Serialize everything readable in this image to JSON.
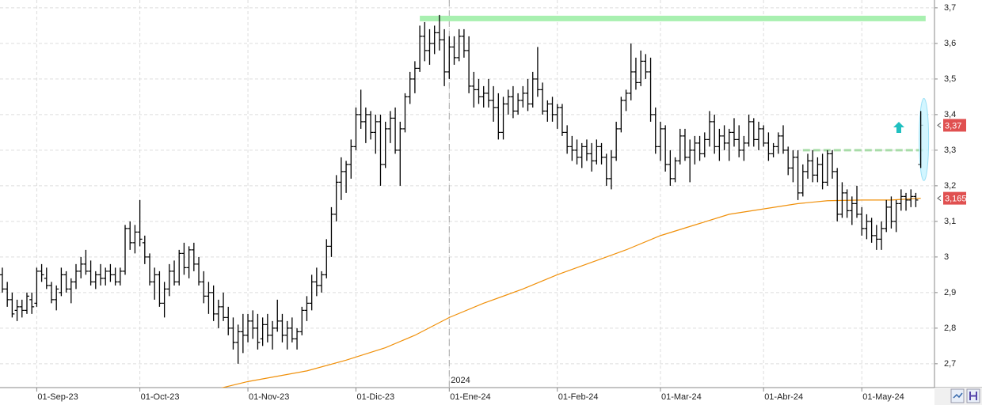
{
  "chart_data": {
    "type": "ohlc",
    "ohlc_order": [
      "open",
      "high",
      "low",
      "close"
    ],
    "color": "#000000",
    "ohlc": [
      [
        2.95,
        2.97,
        2.9,
        2.91
      ],
      [
        2.91,
        2.93,
        2.86,
        2.88
      ],
      [
        2.88,
        2.9,
        2.83,
        2.84
      ],
      [
        2.85,
        2.88,
        2.82,
        2.86
      ],
      [
        2.86,
        2.88,
        2.83,
        2.85
      ],
      [
        2.85,
        2.9,
        2.84,
        2.89
      ],
      [
        2.88,
        2.9,
        2.84,
        2.86
      ],
      [
        2.87,
        2.97,
        2.86,
        2.96
      ],
      [
        2.96,
        2.98,
        2.93,
        2.95
      ],
      [
        2.94,
        2.97,
        2.91,
        2.92
      ],
      [
        2.92,
        2.93,
        2.87,
        2.88
      ],
      [
        2.88,
        2.92,
        2.85,
        2.91
      ],
      [
        2.9,
        2.97,
        2.89,
        2.95
      ],
      [
        2.95,
        2.96,
        2.9,
        2.91
      ],
      [
        2.91,
        2.94,
        2.87,
        2.93
      ],
      [
        2.93,
        2.98,
        2.91,
        2.96
      ],
      [
        2.96,
        3.0,
        2.94,
        2.98
      ],
      [
        2.98,
        3.02,
        2.95,
        2.96
      ],
      [
        2.96,
        2.99,
        2.92,
        2.93
      ],
      [
        2.93,
        2.96,
        2.91,
        2.95
      ],
      [
        2.95,
        2.98,
        2.92,
        2.94
      ],
      [
        2.94,
        2.97,
        2.92,
        2.96
      ],
      [
        2.96,
        2.98,
        2.93,
        2.95
      ],
      [
        2.95,
        2.97,
        2.92,
        2.93
      ],
      [
        2.93,
        2.97,
        2.92,
        2.96
      ],
      [
        2.96,
        3.09,
        2.95,
        3.08
      ],
      [
        3.08,
        3.1,
        3.02,
        3.04
      ],
      [
        3.04,
        3.09,
        3.01,
        3.07
      ],
      [
        3.07,
        3.16,
        3.03,
        3.05
      ],
      [
        3.04,
        3.06,
        2.98,
        3.0
      ],
      [
        3.0,
        3.01,
        2.92,
        2.93
      ],
      [
        2.93,
        2.97,
        2.88,
        2.95
      ],
      [
        2.95,
        2.96,
        2.86,
        2.87
      ],
      [
        2.87,
        2.93,
        2.83,
        2.91
      ],
      [
        2.91,
        2.98,
        2.89,
        2.96
      ],
      [
        2.96,
        2.99,
        2.92,
        2.93
      ],
      [
        2.93,
        3.02,
        2.92,
        3.01
      ],
      [
        3.01,
        3.04,
        2.95,
        2.97
      ],
      [
        2.97,
        3.03,
        2.94,
        3.02
      ],
      [
        3.02,
        3.04,
        2.96,
        2.98
      ],
      [
        2.98,
        3.0,
        2.92,
        2.93
      ],
      [
        2.93,
        2.96,
        2.87,
        2.89
      ],
      [
        2.89,
        2.93,
        2.84,
        2.9
      ],
      [
        2.9,
        2.92,
        2.82,
        2.84
      ],
      [
        2.84,
        2.88,
        2.8,
        2.86
      ],
      [
        2.86,
        2.9,
        2.82,
        2.83
      ],
      [
        2.83,
        2.86,
        2.78,
        2.8
      ],
      [
        2.8,
        2.83,
        2.74,
        2.76
      ],
      [
        2.76,
        2.81,
        2.7,
        2.79
      ],
      [
        2.79,
        2.84,
        2.73,
        2.78
      ],
      [
        2.78,
        2.84,
        2.76,
        2.82
      ],
      [
        2.82,
        2.85,
        2.77,
        2.8
      ],
      [
        2.8,
        2.84,
        2.74,
        2.76
      ],
      [
        2.77,
        2.83,
        2.75,
        2.81
      ],
      [
        2.81,
        2.84,
        2.76,
        2.78
      ],
      [
        2.78,
        2.82,
        2.74,
        2.8
      ],
      [
        2.8,
        2.88,
        2.79,
        2.82
      ],
      [
        2.82,
        2.84,
        2.76,
        2.78
      ],
      [
        2.78,
        2.82,
        2.74,
        2.8
      ],
      [
        2.8,
        2.83,
        2.76,
        2.77
      ],
      [
        2.77,
        2.8,
        2.74,
        2.79
      ],
      [
        2.79,
        2.86,
        2.78,
        2.85
      ],
      [
        2.85,
        2.89,
        2.82,
        2.87
      ],
      [
        2.87,
        2.95,
        2.85,
        2.93
      ],
      [
        2.93,
        2.97,
        2.89,
        2.92
      ],
      [
        2.92,
        2.96,
        2.9,
        2.95
      ],
      [
        2.95,
        3.05,
        2.94,
        3.03
      ],
      [
        3.03,
        3.14,
        3.0,
        3.12
      ],
      [
        3.12,
        3.23,
        3.1,
        3.21
      ],
      [
        3.21,
        3.28,
        3.16,
        3.24
      ],
      [
        3.24,
        3.27,
        3.18,
        3.26
      ],
      [
        3.26,
        3.33,
        3.22,
        3.31
      ],
      [
        3.31,
        3.42,
        3.3,
        3.4
      ],
      [
        3.4,
        3.47,
        3.36,
        3.38
      ],
      [
        3.38,
        3.42,
        3.32,
        3.4
      ],
      [
        3.4,
        3.41,
        3.33,
        3.35
      ],
      [
        3.35,
        3.4,
        3.29,
        3.38
      ],
      [
        3.38,
        3.4,
        3.2,
        3.26
      ],
      [
        3.26,
        3.38,
        3.25,
        3.36
      ],
      [
        3.36,
        3.41,
        3.32,
        3.39
      ],
      [
        3.39,
        3.42,
        3.29,
        3.3
      ],
      [
        3.3,
        3.38,
        3.2,
        3.36
      ],
      [
        3.36,
        3.46,
        3.35,
        3.45
      ],
      [
        3.45,
        3.52,
        3.43,
        3.5
      ],
      [
        3.5,
        3.55,
        3.46,
        3.53
      ],
      [
        3.53,
        3.65,
        3.52,
        3.62
      ],
      [
        3.62,
        3.66,
        3.55,
        3.58
      ],
      [
        3.58,
        3.64,
        3.54,
        3.6
      ],
      [
        3.6,
        3.65,
        3.57,
        3.63
      ],
      [
        3.63,
        3.68,
        3.58,
        3.61
      ],
      [
        3.61,
        3.64,
        3.48,
        3.52
      ],
      [
        3.52,
        3.62,
        3.5,
        3.59
      ],
      [
        3.59,
        3.62,
        3.54,
        3.56
      ],
      [
        3.56,
        3.64,
        3.55,
        3.62
      ],
      [
        3.62,
        3.64,
        3.56,
        3.58
      ],
      [
        3.58,
        3.62,
        3.46,
        3.48
      ],
      [
        3.48,
        3.52,
        3.42,
        3.47
      ],
      [
        3.47,
        3.5,
        3.43,
        3.45
      ],
      [
        3.45,
        3.48,
        3.42,
        3.46
      ],
      [
        3.46,
        3.5,
        3.42,
        3.44
      ],
      [
        3.44,
        3.48,
        3.38,
        3.42
      ],
      [
        3.42,
        3.46,
        3.33,
        3.35
      ],
      [
        3.35,
        3.45,
        3.33,
        3.43
      ],
      [
        3.43,
        3.47,
        3.4,
        3.45
      ],
      [
        3.45,
        3.48,
        3.39,
        3.41
      ],
      [
        3.41,
        3.46,
        3.4,
        3.44
      ],
      [
        3.44,
        3.48,
        3.42,
        3.46
      ],
      [
        3.46,
        3.5,
        3.41,
        3.43
      ],
      [
        3.43,
        3.52,
        3.42,
        3.5
      ],
      [
        3.5,
        3.59,
        3.45,
        3.47
      ],
      [
        3.47,
        3.49,
        3.4,
        3.41
      ],
      [
        3.41,
        3.44,
        3.38,
        3.43
      ],
      [
        3.43,
        3.45,
        3.38,
        3.4
      ],
      [
        3.4,
        3.43,
        3.36,
        3.42
      ],
      [
        3.42,
        3.43,
        3.34,
        3.35
      ],
      [
        3.35,
        3.37,
        3.29,
        3.31
      ],
      [
        3.31,
        3.34,
        3.27,
        3.3
      ],
      [
        3.3,
        3.33,
        3.26,
        3.28
      ],
      [
        3.28,
        3.32,
        3.25,
        3.31
      ],
      [
        3.31,
        3.33,
        3.27,
        3.29
      ],
      [
        3.29,
        3.32,
        3.24,
        3.27
      ],
      [
        3.27,
        3.33,
        3.26,
        3.31
      ],
      [
        3.31,
        3.32,
        3.26,
        3.28
      ],
      [
        3.28,
        3.29,
        3.2,
        3.22
      ],
      [
        3.22,
        3.3,
        3.19,
        3.28
      ],
      [
        3.28,
        3.38,
        3.27,
        3.36
      ],
      [
        3.36,
        3.45,
        3.35,
        3.44
      ],
      [
        3.44,
        3.47,
        3.41,
        3.46
      ],
      [
        3.46,
        3.6,
        3.44,
        3.52
      ],
      [
        3.52,
        3.56,
        3.47,
        3.49
      ],
      [
        3.49,
        3.58,
        3.48,
        3.55
      ],
      [
        3.55,
        3.57,
        3.5,
        3.52
      ],
      [
        3.52,
        3.56,
        3.38,
        3.4
      ],
      [
        3.4,
        3.42,
        3.29,
        3.31
      ],
      [
        3.31,
        3.38,
        3.27,
        3.36
      ],
      [
        3.36,
        3.37,
        3.24,
        3.26
      ],
      [
        3.26,
        3.3,
        3.2,
        3.22
      ],
      [
        3.22,
        3.28,
        3.21,
        3.27
      ],
      [
        3.27,
        3.36,
        3.26,
        3.34
      ],
      [
        3.34,
        3.36,
        3.27,
        3.28
      ],
      [
        3.28,
        3.33,
        3.21,
        3.3
      ],
      [
        3.3,
        3.34,
        3.26,
        3.32
      ],
      [
        3.32,
        3.34,
        3.27,
        3.29
      ],
      [
        3.29,
        3.35,
        3.28,
        3.33
      ],
      [
        3.33,
        3.41,
        3.31,
        3.38
      ],
      [
        3.38,
        3.4,
        3.29,
        3.31
      ],
      [
        3.31,
        3.36,
        3.27,
        3.34
      ],
      [
        3.34,
        3.37,
        3.3,
        3.32
      ],
      [
        3.32,
        3.36,
        3.27,
        3.35
      ],
      [
        3.35,
        3.39,
        3.31,
        3.33
      ],
      [
        3.33,
        3.37,
        3.28,
        3.3
      ],
      [
        3.3,
        3.34,
        3.27,
        3.32
      ],
      [
        3.32,
        3.4,
        3.31,
        3.38
      ],
      [
        3.38,
        3.39,
        3.31,
        3.33
      ],
      [
        3.33,
        3.38,
        3.3,
        3.36
      ],
      [
        3.36,
        3.37,
        3.31,
        3.32
      ],
      [
        3.32,
        3.35,
        3.27,
        3.29
      ],
      [
        3.29,
        3.32,
        3.28,
        3.31
      ],
      [
        3.31,
        3.35,
        3.29,
        3.34
      ],
      [
        3.34,
        3.37,
        3.29,
        3.3
      ],
      [
        3.3,
        3.31,
        3.23,
        3.25
      ],
      [
        3.25,
        3.3,
        3.21,
        3.28
      ],
      [
        3.28,
        3.3,
        3.16,
        3.18
      ],
      [
        3.18,
        3.26,
        3.17,
        3.24
      ],
      [
        3.24,
        3.29,
        3.22,
        3.27
      ],
      [
        3.27,
        3.3,
        3.21,
        3.23
      ],
      [
        3.23,
        3.28,
        3.21,
        3.26
      ],
      [
        3.26,
        3.29,
        3.19,
        3.21
      ],
      [
        3.21,
        3.3,
        3.2,
        3.29
      ],
      [
        3.29,
        3.3,
        3.22,
        3.24
      ],
      [
        3.24,
        3.25,
        3.1,
        3.12
      ],
      [
        3.12,
        3.21,
        3.11,
        3.18
      ],
      [
        3.18,
        3.19,
        3.11,
        3.13
      ],
      [
        3.13,
        3.17,
        3.09,
        3.15
      ],
      [
        3.15,
        3.2,
        3.11,
        3.12
      ],
      [
        3.12,
        3.14,
        3.06,
        3.08
      ],
      [
        3.08,
        3.12,
        3.05,
        3.1
      ],
      [
        3.1,
        3.11,
        3.04,
        3.06
      ],
      [
        3.06,
        3.09,
        3.02,
        3.05
      ],
      [
        3.05,
        3.1,
        3.02,
        3.08
      ],
      [
        3.08,
        3.16,
        3.07,
        3.14
      ],
      [
        3.14,
        3.17,
        3.08,
        3.1
      ],
      [
        3.1,
        3.16,
        3.07,
        3.15
      ],
      [
        3.15,
        3.19,
        3.13,
        3.17
      ],
      [
        3.17,
        3.18,
        3.13,
        3.16
      ],
      [
        3.16,
        3.19,
        3.14,
        3.17
      ],
      [
        3.17,
        3.18,
        3.14,
        3.16
      ],
      [
        3.26,
        3.41,
        3.25,
        3.37
      ]
    ],
    "ma": {
      "color": "#f0900a",
      "x": [
        44,
        50,
        56,
        62,
        70,
        78,
        84,
        91,
        98,
        106,
        113,
        120,
        127,
        134,
        141,
        148,
        155,
        162,
        168,
        175,
        181,
        187
      ],
      "values": [
        2.63,
        2.65,
        2.665,
        2.68,
        2.71,
        2.745,
        2.78,
        2.83,
        2.87,
        2.91,
        2.95,
        2.985,
        3.02,
        3.06,
        3.09,
        3.12,
        3.135,
        3.15,
        3.158,
        3.16,
        3.16,
        3.165
      ]
    },
    "xlim": [
      -0.48,
      189.8
    ],
    "ylim": [
      2.633,
      3.722
    ],
    "yticks": [
      {
        "value": 2.7,
        "label": "2,7"
      },
      {
        "value": 2.8,
        "label": "2,8"
      },
      {
        "value": 2.9,
        "label": "2,9"
      },
      3,
      {
        "value": 3.1,
        "label": "3,1"
      },
      {
        "value": 3.2,
        "label": "3,2"
      },
      {
        "value": 3.3,
        "label": "3,3"
      },
      {
        "value": 3.4,
        "label": "3,4"
      },
      {
        "value": 3.5,
        "label": "3,5"
      },
      {
        "value": 3.6,
        "label": "3,6"
      },
      {
        "value": 3.7,
        "label": "3,7"
      }
    ],
    "xticks": [
      {
        "value": 7,
        "label": "01-Sep-23"
      },
      {
        "value": 28,
        "label": "01-Oct-23"
      },
      {
        "value": 50,
        "label": "01-Nov-23"
      },
      {
        "value": 72,
        "label": "01-Dic-23"
      },
      {
        "value": 91,
        "label": "01-Ene-24"
      },
      {
        "value": 113,
        "label": "01-Feb-24"
      },
      {
        "value": 134,
        "label": "01-Mar-24"
      },
      {
        "value": 155,
        "label": "01-Abr-24"
      },
      {
        "value": 175,
        "label": "01-May-24"
      }
    ],
    "year_marker": {
      "value": 91,
      "label": "2024"
    },
    "grid": true,
    "levels": [
      {
        "value": 3.67,
        "x": [
          85,
          188
        ],
        "color": "#a8f0b0",
        "style": "solid"
      },
      {
        "value": 3.3,
        "x": [
          163,
          188
        ],
        "color": "#a8dca8",
        "style": "dashed"
      }
    ],
    "price_tags": [
      {
        "value": 3.37,
        "label": "3,37"
      },
      {
        "value": 3.165,
        "label": "3,165"
      }
    ],
    "tag_color": "#e05050"
  }
}
